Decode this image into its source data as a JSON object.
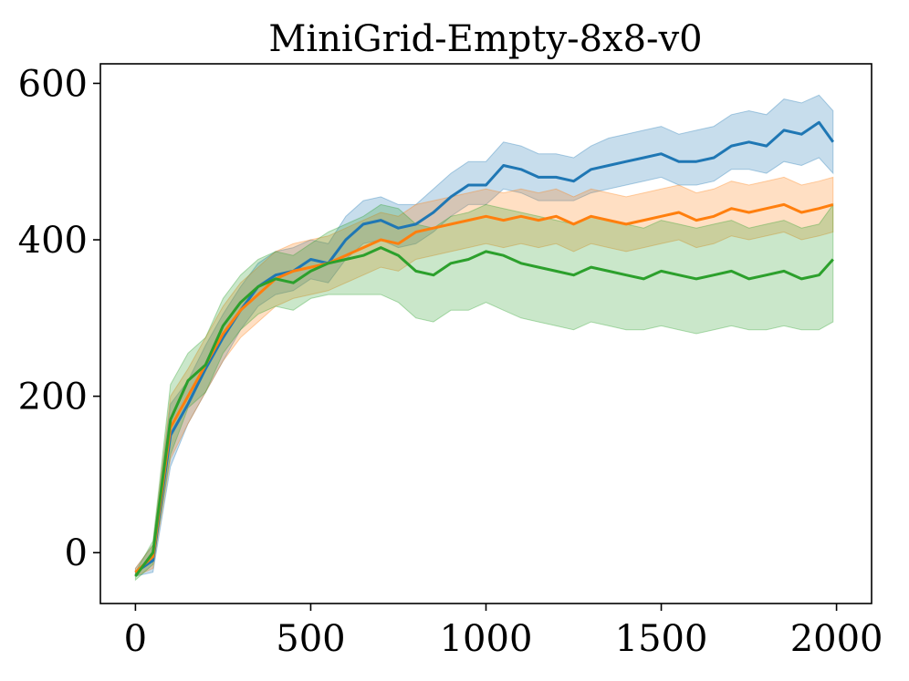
{
  "chart_data": {
    "type": "line",
    "title": "MiniGrid-Empty-8x8-v0",
    "xlabel": "",
    "ylabel": "",
    "xlim": [
      -100,
      2100
    ],
    "ylim": [
      -65,
      625
    ],
    "x_ticks": [
      0,
      500,
      1000,
      1500,
      2000
    ],
    "y_ticks": [
      0,
      200,
      400,
      600
    ],
    "grid": false,
    "legend": "none",
    "x": [
      0,
      50,
      100,
      150,
      200,
      250,
      300,
      350,
      400,
      450,
      500,
      550,
      600,
      650,
      700,
      750,
      800,
      850,
      900,
      950,
      1000,
      1050,
      1100,
      1150,
      1200,
      1250,
      1300,
      1350,
      1400,
      1450,
      1500,
      1550,
      1600,
      1650,
      1700,
      1750,
      1800,
      1850,
      1900,
      1950,
      1990
    ],
    "series": [
      {
        "color": "#1f77b4",
        "values": [
          -25,
          -10,
          150,
          190,
          235,
          275,
          310,
          340,
          355,
          360,
          375,
          370,
          400,
          420,
          425,
          415,
          420,
          435,
          455,
          470,
          470,
          495,
          490,
          480,
          480,
          475,
          490,
          495,
          500,
          505,
          510,
          500,
          500,
          505,
          520,
          525,
          520,
          540,
          535,
          550,
          525
        ],
        "lower": [
          -30,
          -25,
          110,
          165,
          205,
          245,
          285,
          315,
          330,
          335,
          350,
          345,
          375,
          395,
          400,
          390,
          395,
          410,
          430,
          445,
          445,
          465,
          460,
          450,
          450,
          450,
          460,
          465,
          470,
          475,
          480,
          470,
          470,
          475,
          490,
          490,
          485,
          500,
          495,
          505,
          485
        ],
        "upper": [
          -20,
          10,
          190,
          220,
          265,
          305,
          340,
          370,
          385,
          390,
          400,
          395,
          430,
          450,
          455,
          445,
          445,
          465,
          485,
          500,
          500,
          525,
          520,
          510,
          510,
          505,
          520,
          530,
          535,
          540,
          545,
          535,
          540,
          545,
          560,
          565,
          560,
          580,
          575,
          585,
          565
        ]
      },
      {
        "color": "#ff7f0e",
        "values": [
          -25,
          -5,
          160,
          200,
          240,
          280,
          310,
          330,
          350,
          360,
          365,
          370,
          380,
          390,
          400,
          395,
          410,
          415,
          420,
          425,
          430,
          425,
          430,
          425,
          430,
          420,
          430,
          425,
          420,
          425,
          430,
          435,
          425,
          430,
          440,
          435,
          440,
          445,
          435,
          440,
          445
        ],
        "lower": [
          -30,
          -20,
          120,
          165,
          205,
          245,
          275,
          295,
          315,
          325,
          330,
          335,
          345,
          355,
          365,
          360,
          375,
          380,
          385,
          390,
          395,
          390,
          395,
          390,
          395,
          385,
          395,
          390,
          385,
          390,
          395,
          400,
          390,
          395,
          405,
          400,
          405,
          410,
          400,
          405,
          410
        ],
        "upper": [
          -20,
          10,
          200,
          235,
          275,
          315,
          345,
          365,
          385,
          395,
          400,
          405,
          415,
          425,
          435,
          430,
          445,
          450,
          455,
          460,
          465,
          460,
          465,
          460,
          465,
          455,
          465,
          460,
          455,
          460,
          465,
          470,
          460,
          465,
          475,
          470,
          475,
          480,
          470,
          475,
          480
        ]
      },
      {
        "color": "#2ca02c",
        "values": [
          -30,
          0,
          170,
          220,
          240,
          290,
          320,
          340,
          350,
          345,
          360,
          370,
          375,
          380,
          390,
          380,
          360,
          355,
          370,
          375,
          385,
          380,
          370,
          365,
          360,
          355,
          365,
          360,
          355,
          350,
          360,
          355,
          350,
          355,
          360,
          350,
          355,
          360,
          350,
          355,
          375
        ],
        "lower": [
          -35,
          -15,
          125,
          185,
          205,
          255,
          285,
          305,
          315,
          310,
          325,
          330,
          330,
          330,
          330,
          320,
          300,
          295,
          310,
          310,
          320,
          310,
          300,
          295,
          290,
          285,
          295,
          290,
          285,
          285,
          290,
          285,
          280,
          285,
          290,
          285,
          285,
          290,
          285,
          285,
          295
        ],
        "upper": [
          -25,
          15,
          215,
          255,
          275,
          325,
          355,
          375,
          385,
          380,
          395,
          410,
          420,
          430,
          445,
          440,
          420,
          415,
          430,
          435,
          445,
          440,
          435,
          430,
          425,
          420,
          430,
          425,
          420,
          415,
          425,
          420,
          415,
          420,
          425,
          415,
          420,
          425,
          415,
          420,
          445
        ]
      }
    ]
  }
}
